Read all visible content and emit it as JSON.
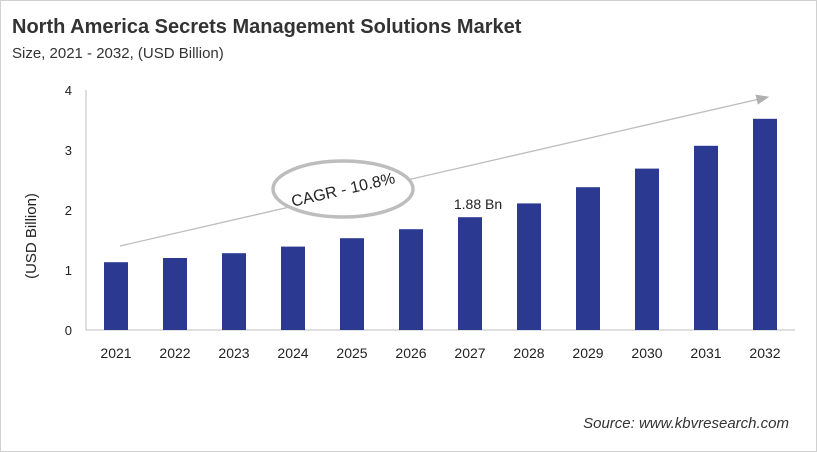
{
  "chart_data": {
    "type": "bar",
    "title": "North America Secrets Management Solutions Market",
    "subtitle": "Size, 2021 - 2032, (USD Billion)",
    "xlabel": "",
    "ylabel": "(USD Billion)",
    "ylim": [
      0,
      4
    ],
    "yticks": [
      "0",
      "1",
      "2",
      "3",
      "4"
    ],
    "grid": false,
    "categories": [
      "2021",
      "2022",
      "2023",
      "2024",
      "2025",
      "2026",
      "2027",
      "2028",
      "2029",
      "2030",
      "2031",
      "2032"
    ],
    "values": [
      1.13,
      1.2,
      1.28,
      1.39,
      1.53,
      1.68,
      1.88,
      2.11,
      2.38,
      2.69,
      3.07,
      3.52
    ],
    "bar_color": "#2B3990",
    "data_labels": [
      {
        "category": "2027",
        "text": "1.88 Bn"
      }
    ],
    "annotation": "CAGR - 10.8%",
    "source": "Source: www.kbvresearch.com"
  }
}
